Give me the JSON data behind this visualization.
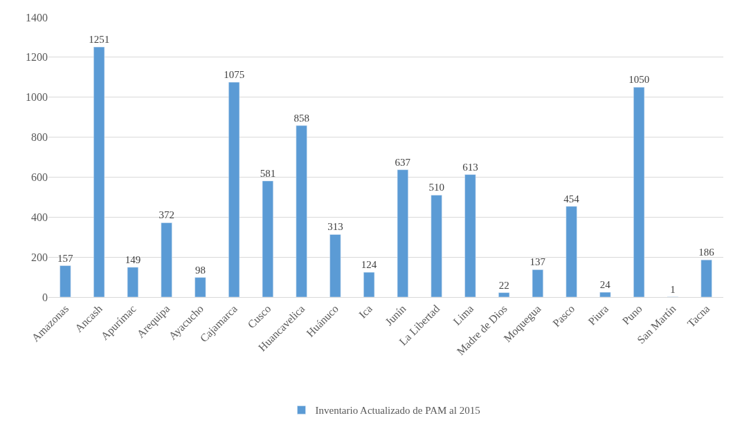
{
  "chart_data": {
    "type": "bar",
    "categories": [
      "Amazonas",
      "Ancash",
      "Apurímac",
      "Arequipa",
      "Ayacucho",
      "Cajamarca",
      "Cusco",
      "Huancavelica",
      "Huánuco",
      "Ica",
      "Junín",
      "La Libertad",
      "Lima",
      "Madre de Dios",
      "Moquegua",
      "Pasco",
      "Piura",
      "Puno",
      "San Martín",
      "Tacna"
    ],
    "series": [
      {
        "name": "Inventario Actualizado de PAM al 2015",
        "color": "#5b9bd5",
        "values": [
          157,
          1251,
          149,
          372,
          98,
          1075,
          581,
          858,
          313,
          124,
          637,
          510,
          613,
          22,
          137,
          454,
          24,
          1050,
          1,
          186
        ]
      }
    ],
    "ylim": [
      0,
      1400
    ],
    "yticks": [
      0,
      200,
      400,
      600,
      800,
      1000,
      1200,
      1400
    ],
    "grid": "y",
    "legend": "bottom",
    "data_labels": true
  }
}
